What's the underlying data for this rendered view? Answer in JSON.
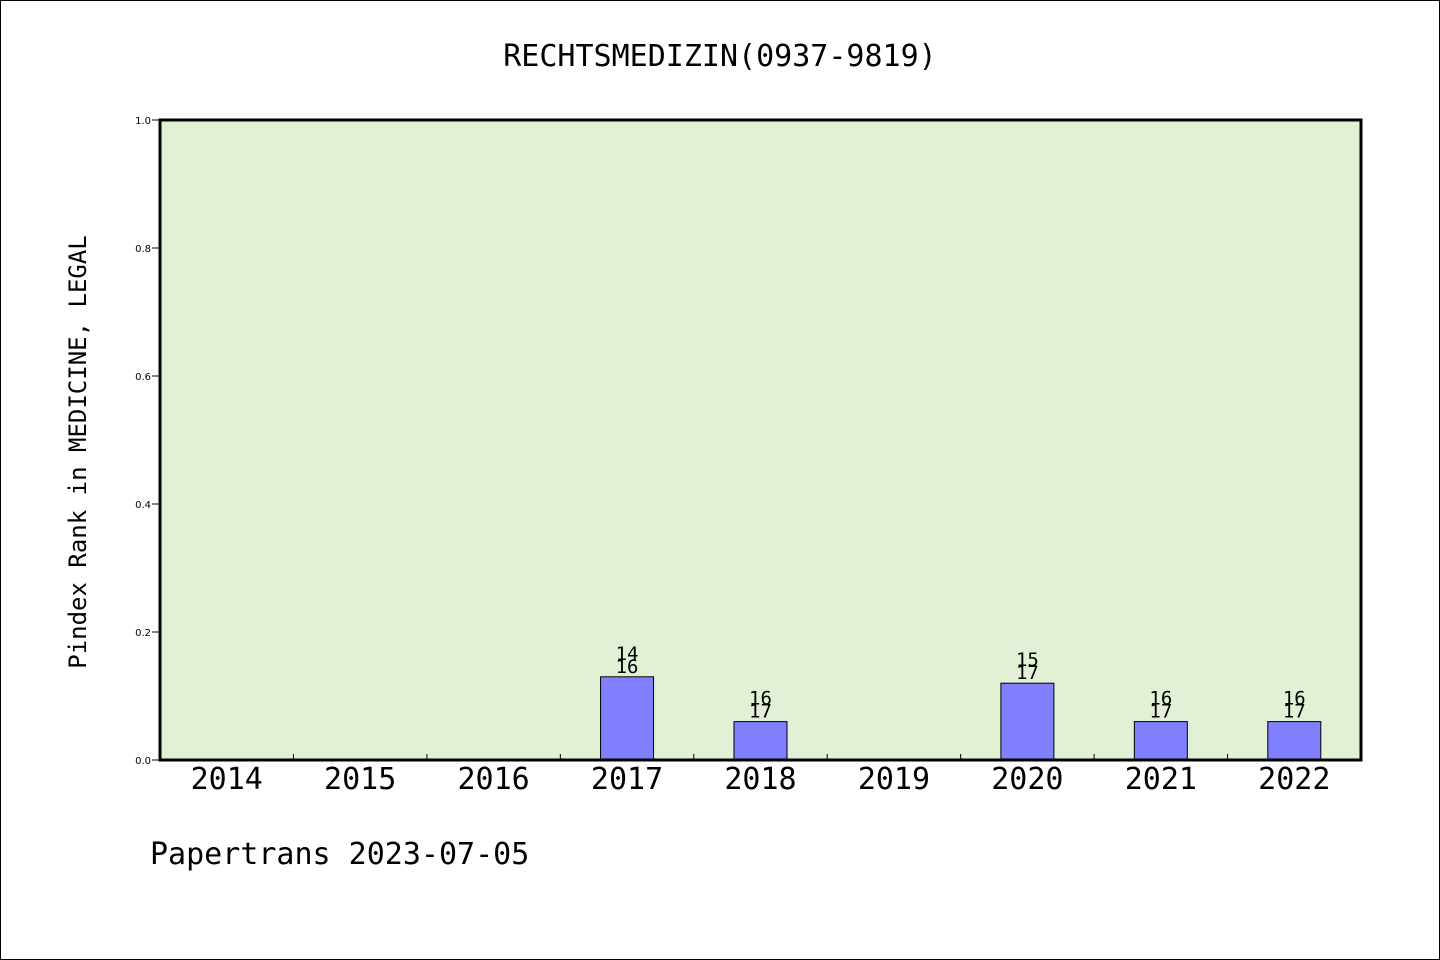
{
  "chart_data": {
    "type": "bar",
    "title": "RECHTSMEDIZIN(0937-9819)",
    "xlabel": "",
    "ylabel": "Pindex Rank in MEDICINE, LEGAL",
    "categories": [
      "2014",
      "2015",
      "2016",
      "2017",
      "2018",
      "2019",
      "2020",
      "2021",
      "2022"
    ],
    "values": [
      null,
      null,
      null,
      0.13,
      0.06,
      null,
      0.12,
      0.06,
      0.06
    ],
    "bar_labels": [
      null,
      null,
      null,
      [
        "14",
        "16"
      ],
      [
        "16",
        "17"
      ],
      null,
      [
        "15",
        "17"
      ],
      [
        "16",
        "17"
      ],
      [
        "16",
        "17"
      ]
    ],
    "ylim": [
      0,
      1.0
    ],
    "yticks": [
      "0.0",
      "0.2",
      "0.4",
      "0.6",
      "0.8",
      "1.0"
    ],
    "grid": false,
    "colors": {
      "plot_background": "#e2f0d6",
      "bar_fill": "#8080ff",
      "bar_stroke": "#000000"
    }
  },
  "footer": "Papertrans 2023-07-05"
}
